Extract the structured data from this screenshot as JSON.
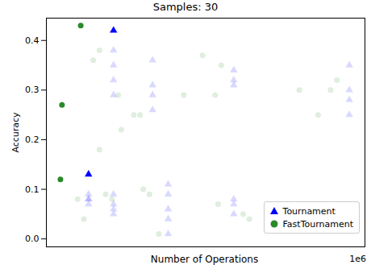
{
  "chart_data": {
    "type": "scatter",
    "title": "Samples: 30",
    "xlabel": "Number of Operations",
    "ylabel": "Accuracy",
    "annotations": [
      "1e6"
    ],
    "xlim": [
      30000,
      1050000
    ],
    "ylim": [
      -0.016,
      0.445
    ],
    "yticks": [
      {
        "value": 0,
        "label": "0.0"
      },
      {
        "value": 0.1,
        "label": "0.1"
      },
      {
        "value": 0.2,
        "label": "0.2"
      },
      {
        "value": 0.3,
        "label": "0.3"
      },
      {
        "value": 0.4,
        "label": "0.4"
      }
    ],
    "tick_labels": "y",
    "grid": false,
    "legend": "lower right",
    "series": [
      {
        "name": "Tournament",
        "color": "#0000ff",
        "marker": "triangle",
        "x": [
          245000,
          165000,
          165000,
          165000,
          165000,
          165000,
          245000,
          245000,
          245000,
          245000,
          245000,
          245000,
          245000,
          245000,
          370000,
          370000,
          370000,
          370000,
          420000,
          420000,
          420000,
          420000,
          420000,
          630000,
          630000,
          630000,
          630000,
          630000,
          630000,
          1000000,
          1000000,
          1000000,
          1000000
        ],
        "y": [
          0.42,
          0.13,
          0.08,
          0.09,
          0.07,
          0.08,
          0.38,
          0.35,
          0.32,
          0.29,
          0.09,
          0.07,
          0.06,
          0.05,
          0.36,
          0.31,
          0.29,
          0.26,
          0.11,
          0.09,
          0.06,
          0.04,
          0.01,
          0.34,
          0.32,
          0.31,
          0.08,
          0.07,
          0.05,
          0.35,
          0.3,
          0.28,
          0.25
        ],
        "highlighted": [
          true,
          true,
          false,
          false,
          false,
          false,
          false,
          false,
          false,
          false,
          false,
          false,
          false,
          false,
          false,
          false,
          false,
          false,
          false,
          false,
          false,
          false,
          false,
          false,
          false,
          false,
          false,
          false,
          false,
          false,
          false,
          false,
          false
        ]
      },
      {
        "name": "FastTournament",
        "color": "#2a8a2a",
        "marker": "circle",
        "x": [
          140000,
          80000,
          75000,
          130000,
          150000,
          180000,
          200000,
          200000,
          220000,
          240000,
          260000,
          270000,
          310000,
          330000,
          340000,
          360000,
          390000,
          470000,
          530000,
          570000,
          580000,
          590000,
          660000,
          680000,
          840000,
          900000,
          940000,
          960000
        ],
        "y": [
          0.43,
          0.27,
          0.12,
          0.08,
          0.04,
          0.36,
          0.18,
          0.38,
          0.09,
          0.08,
          0.29,
          0.22,
          0.25,
          0.25,
          0.1,
          0.09,
          0.01,
          0.29,
          0.37,
          0.29,
          0.07,
          0.35,
          0.05,
          0.04,
          0.3,
          0.25,
          0.3,
          0.32
        ],
        "highlighted": [
          true,
          true,
          true,
          false,
          false,
          false,
          false,
          false,
          false,
          false,
          false,
          false,
          false,
          false,
          false,
          false,
          false,
          false,
          false,
          false,
          false,
          false,
          false,
          false,
          false,
          false,
          false,
          false
        ]
      }
    ]
  }
}
